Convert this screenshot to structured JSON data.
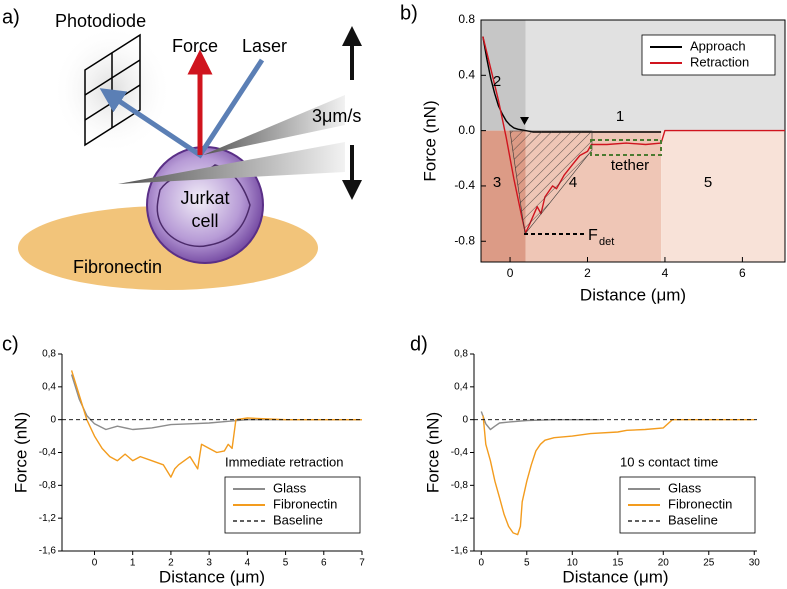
{
  "diagram": {
    "panel_label": "a)",
    "labels": {
      "photodiode": "Photodiode",
      "force": "Force",
      "laser": "Laser",
      "speed": "3μm/s",
      "cell_1": "Jurkat",
      "cell_2": "cell",
      "substrate": "Fibronectin"
    }
  },
  "chart_data": [
    {
      "type": "line",
      "panel_label": "b)",
      "x_label": "Distance (μm)",
      "y_label": "Force (nN)",
      "xlim": [
        -0.75,
        7.1
      ],
      "ylim": [
        -0.95,
        0.8
      ],
      "xticks": [
        0,
        2,
        4,
        6
      ],
      "yticks": [
        0.8,
        0.4,
        {
          "value": 0,
          "label": "0.0"
        },
        -0.4,
        -0.8
      ],
      "legend": "upper right",
      "regions": [
        {
          "x": [
            -0.75,
            0.4
          ],
          "y": [
            0,
            0.8
          ],
          "color": "#c6c6c6"
        },
        {
          "x": [
            0.4,
            7.1
          ],
          "y": [
            0,
            0.8
          ],
          "color": "#e1e1e1"
        },
        {
          "x": [
            -0.75,
            0.4
          ],
          "y": [
            -0.95,
            0
          ],
          "color": "#dc9b86"
        },
        {
          "x": [
            0.4,
            3.9
          ],
          "y": [
            -0.95,
            0
          ],
          "color": "#efc6b6"
        },
        {
          "x": [
            3.9,
            7.1
          ],
          "y": [
            -0.95,
            0
          ],
          "color": "#f8e2d8"
        }
      ],
      "annotations": [
        "1",
        "2",
        "3",
        "4",
        "5",
        "tether"
      ],
      "force_label": "F",
      "force_subscript": "det",
      "series": [
        {
          "name": "Approach",
          "color": "#000000",
          "x": [
            -0.7,
            -0.6,
            -0.5,
            -0.4,
            -0.3,
            -0.2,
            -0.1,
            0,
            0.1,
            0.2,
            0.4,
            0.6,
            1,
            1.5,
            2,
            2.5,
            3,
            3.5,
            3.9
          ],
          "values": [
            0.68,
            0.52,
            0.38,
            0.27,
            0.18,
            0.12,
            0.07,
            0.04,
            0.02,
            0.01,
            0,
            -0.01,
            -0.01,
            -0.01,
            -0.01,
            -0.01,
            -0.01,
            -0.01,
            -0.01
          ]
        },
        {
          "name": "Retraction",
          "color": "#d0141e",
          "x": [
            -0.7,
            -0.5,
            -0.3,
            -0.1,
            0.1,
            0.3,
            0.4,
            0.5,
            0.7,
            0.8,
            0.9,
            1.1,
            1.2,
            1.4,
            1.6,
            1.8,
            2.0,
            2.1,
            2.5,
            3,
            3.5,
            3.9,
            4,
            5,
            6,
            7.1
          ],
          "values": [
            0.68,
            0.45,
            0.22,
            -0.05,
            -0.35,
            -0.62,
            -0.74,
            -0.68,
            -0.55,
            -0.6,
            -0.48,
            -0.4,
            -0.42,
            -0.32,
            -0.25,
            -0.18,
            -0.15,
            -0.1,
            -0.1,
            -0.09,
            -0.1,
            -0.09,
            0,
            0,
            0,
            0
          ]
        }
      ]
    },
    {
      "type": "line",
      "panel_label": "c)",
      "x_label": "Distance (μm)",
      "y_label": "Force (nN)",
      "xlim": [
        -0.85,
        7
      ],
      "ylim": [
        -1.6,
        0.8
      ],
      "xticks": [
        0,
        1,
        2,
        3,
        4,
        5,
        6,
        7
      ],
      "yticks": [
        {
          "value": 0.8,
          "label": "0,8"
        },
        {
          "value": 0.4,
          "label": "0,4"
        },
        0,
        {
          "value": -0.4,
          "label": "-0,4"
        },
        {
          "value": -0.8,
          "label": "-0,8"
        },
        {
          "value": -1.2,
          "label": "-1,2"
        },
        {
          "value": -1.6,
          "label": "-1,6"
        }
      ],
      "legend": "lower right",
      "legend_title": "Immediate retraction",
      "series": [
        {
          "name": "Glass",
          "color": "#8c8c8c",
          "x": [
            -0.6,
            -0.4,
            -0.2,
            0,
            0.3,
            0.6,
            1,
            1.5,
            2,
            2.5,
            3,
            3.5,
            4,
            5,
            6,
            7
          ],
          "values": [
            0.55,
            0.25,
            0.05,
            -0.05,
            -0.12,
            -0.08,
            -0.12,
            -0.1,
            -0.06,
            -0.05,
            -0.04,
            -0.02,
            0,
            0,
            0,
            0
          ]
        },
        {
          "name": "Fibronectin",
          "color": "#f39c1e",
          "x": [
            -0.6,
            -0.4,
            -0.2,
            0,
            0.2,
            0.4,
            0.6,
            0.8,
            1.0,
            1.2,
            1.5,
            1.8,
            2.0,
            2.1,
            2.2,
            2.5,
            2.7,
            2.8,
            3.0,
            3.2,
            3.4,
            3.5,
            3.6,
            3.7,
            4,
            5,
            6,
            7
          ],
          "values": [
            0.6,
            0.3,
            0.0,
            -0.2,
            -0.35,
            -0.45,
            -0.5,
            -0.42,
            -0.5,
            -0.45,
            -0.5,
            -0.55,
            -0.7,
            -0.6,
            -0.55,
            -0.45,
            -0.6,
            -0.3,
            -0.35,
            -0.4,
            -0.38,
            -0.3,
            -0.35,
            0,
            0.02,
            0,
            0,
            0
          ]
        },
        {
          "name": "Baseline",
          "color": "#000000",
          "line_style": "dashed",
          "x": [
            -0.85,
            7
          ],
          "values": [
            0,
            0
          ]
        }
      ]
    },
    {
      "type": "line",
      "panel_label": "d)",
      "x_label": "Distance (μm)",
      "y_label": "Force (nN)",
      "xlim": [
        -0.8,
        30.3
      ],
      "ylim": [
        -1.6,
        0.8
      ],
      "xticks": [
        0,
        5,
        10,
        15,
        20,
        25,
        30
      ],
      "yticks": [
        {
          "value": 0.8,
          "label": "0,8"
        },
        {
          "value": 0.4,
          "label": "0,4"
        },
        0,
        {
          "value": -0.4,
          "label": "-0,4"
        },
        {
          "value": -0.8,
          "label": "-0,8"
        },
        {
          "value": -1.2,
          "label": "-1,2"
        },
        {
          "value": -1.6,
          "label": "-1,6"
        }
      ],
      "legend": "lower right",
      "legend_title": "10 s contact time",
      "series": [
        {
          "name": "Glass",
          "color": "#8c8c8c",
          "x": [
            0,
            0.5,
            1,
            1.5,
            2,
            3,
            5,
            8,
            11,
            13
          ],
          "values": [
            0.1,
            -0.05,
            -0.12,
            -0.08,
            -0.04,
            -0.03,
            -0.01,
            0,
            0,
            0
          ]
        },
        {
          "name": "Fibronectin",
          "color": "#f39c1e",
          "x": [
            0.2,
            0.5,
            1,
            1.5,
            2,
            2.5,
            3,
            3.5,
            4,
            4.3,
            4.5,
            5,
            5.5,
            6,
            6.5,
            7,
            8,
            10,
            12,
            15,
            16,
            18,
            20,
            21,
            25,
            30
          ],
          "values": [
            0.05,
            -0.3,
            -0.5,
            -0.75,
            -0.95,
            -1.15,
            -1.3,
            -1.38,
            -1.4,
            -1.3,
            -1.0,
            -0.75,
            -0.55,
            -0.38,
            -0.3,
            -0.25,
            -0.22,
            -0.2,
            -0.17,
            -0.15,
            -0.13,
            -0.12,
            -0.1,
            0,
            0,
            0
          ]
        },
        {
          "name": "Baseline",
          "color": "#000000",
          "line_style": "dashed",
          "x": [
            -0.8,
            30.3
          ],
          "values": [
            0,
            0
          ]
        }
      ]
    }
  ]
}
